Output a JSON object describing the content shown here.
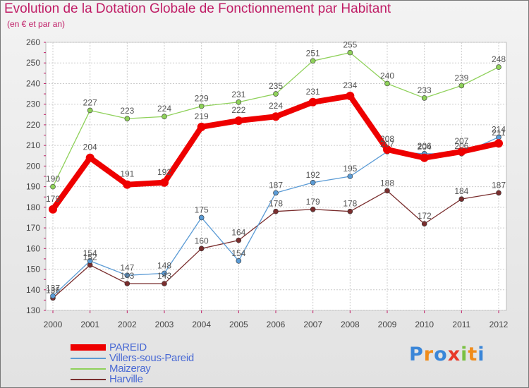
{
  "chart_data": {
    "type": "line",
    "title": "Evolution de la Dotation Globale de Fonctionnement par Habitant",
    "subtitle": "(en € et par an)",
    "categories": [
      "2000",
      "2001",
      "2002",
      "2003",
      "2004",
      "2005",
      "2006",
      "2007",
      "2008",
      "2009",
      "2010",
      "2011",
      "2012"
    ],
    "ylim": [
      130,
      260
    ],
    "yticks": [
      130,
      140,
      150,
      160,
      170,
      180,
      190,
      200,
      210,
      220,
      230,
      240,
      250,
      260
    ],
    "grid": true,
    "legend_position": "bottom-left",
    "series": [
      {
        "name": "PAREID",
        "color": "#ee0000",
        "values": [
          179,
          204,
          191,
          192,
          219,
          222,
          224,
          231,
          234,
          208,
          204,
          207,
          211
        ]
      },
      {
        "name": "Villers-sous-Pareid",
        "color": "#5b9bd5",
        "values": [
          137,
          154,
          147,
          148,
          175,
          154,
          187,
          192,
          195,
          207,
          206,
          206,
          214
        ]
      },
      {
        "name": "Maizeray",
        "color": "#8fd15a",
        "values": [
          190,
          227,
          223,
          224,
          229,
          231,
          235,
          251,
          255,
          240,
          233,
          239,
          248
        ]
      },
      {
        "name": "Harville",
        "color": "#7a2e2e",
        "values": [
          136,
          152,
          143,
          143,
          160,
          164,
          178,
          179,
          178,
          188,
          172,
          184,
          187
        ]
      }
    ]
  },
  "branding": {
    "logo_letters": [
      "P",
      "r",
      "o",
      "x",
      "i",
      "t",
      "i"
    ],
    "logo_colors": [
      "#3a86d8",
      "#f08c1a",
      "#3a86d8",
      "#e83a2a",
      "#7ac142",
      "#f08c1a",
      "#3a86d8"
    ]
  }
}
